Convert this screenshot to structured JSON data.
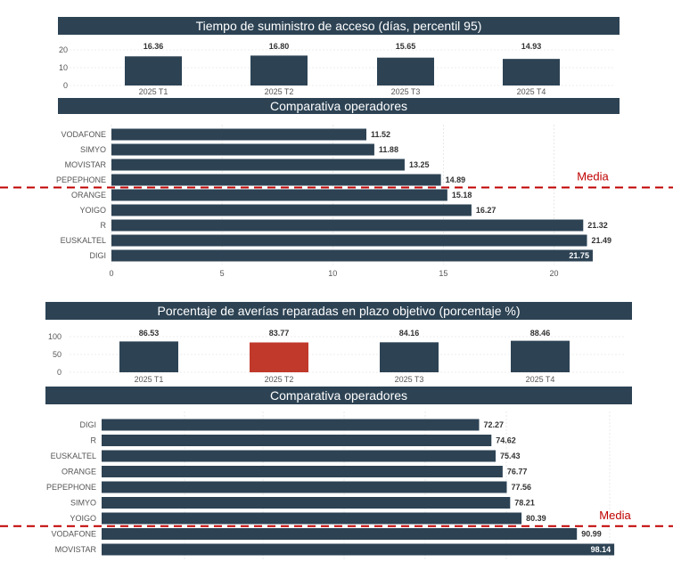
{
  "theme": {
    "bar": "#2d4354",
    "highlight": "#c0392b",
    "media_line": "#c00000",
    "grid": "#d9d9d9"
  },
  "chart_data": [
    {
      "type": "bar",
      "title": "Tiempo de suministro de acceso (días, percentil 95)",
      "categories": [
        "2025 T1",
        "2025 T2",
        "2025 T3",
        "2025 T4"
      ],
      "values": [
        16.36,
        16.8,
        15.65,
        14.93
      ],
      "value_labels": [
        "16.36",
        "16.80",
        "15.65",
        "14.93"
      ],
      "ylim": [
        0,
        20
      ],
      "yticks": [
        "0",
        "10",
        "20"
      ],
      "grid": true
    },
    {
      "type": "bar",
      "orientation": "horizontal",
      "title": "Comparativa operadores",
      "categories": [
        "VODAFONE",
        "SIMYO",
        "MOVISTAR",
        "PEPEPHONE",
        "ORANGE",
        "YOIGO",
        "R",
        "EUSKALTEL",
        "DIGI"
      ],
      "values": [
        11.52,
        11.88,
        13.25,
        14.89,
        15.18,
        16.27,
        21.32,
        21.49,
        21.75
      ],
      "value_labels": [
        "11.52",
        "11.88",
        "13.25",
        "14.89",
        "15.18",
        "16.27",
        "21.32",
        "21.49",
        "21.75"
      ],
      "xlim": [
        0,
        23
      ],
      "xticks": [
        "0",
        "5",
        "10",
        "15",
        "20"
      ],
      "reference_line": {
        "label": "Media",
        "after_index": 3
      },
      "grid": true
    },
    {
      "type": "bar",
      "title": "Porcentaje de averías reparadas en plazo objetivo (porcentaje %)",
      "categories": [
        "2025 T1",
        "2025 T2",
        "2025 T3",
        "2025 T4"
      ],
      "values": [
        86.53,
        83.77,
        84.16,
        88.46
      ],
      "value_labels": [
        "86.53",
        "83.77",
        "84.16",
        "88.46"
      ],
      "highlight_index": 1,
      "ylim": [
        0,
        100
      ],
      "yticks": [
        "0",
        "50",
        "100"
      ],
      "grid": true
    },
    {
      "type": "bar",
      "orientation": "horizontal",
      "title": "Comparativa operadores",
      "categories": [
        "DIGI",
        "R",
        "EUSKALTEL",
        "ORANGE",
        "PEPEPHONE",
        "SIMYO",
        "YOIGO",
        "VODAFONE",
        "MOVISTAR"
      ],
      "values": [
        72.27,
        74.62,
        75.43,
        76.77,
        77.56,
        78.21,
        80.39,
        90.99,
        98.14
      ],
      "value_labels": [
        "72.27",
        "74.62",
        "75.43",
        "76.77",
        "77.56",
        "78.21",
        "80.39",
        "90.99",
        "98.14"
      ],
      "xlim": [
        0,
        100
      ],
      "reference_line": {
        "label": "Media",
        "after_index": 6
      },
      "grid": true
    }
  ]
}
